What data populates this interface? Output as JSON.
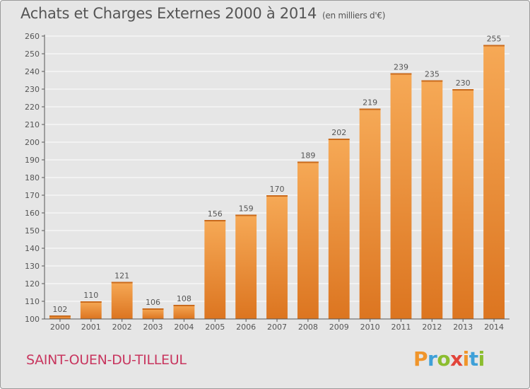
{
  "header": {
    "title": "Achats et Charges Externes 2000 à 2014",
    "subtitle": "(en milliers d'€)"
  },
  "footer": {
    "location": "SAINT-OUEN-DU-TILLEUL",
    "logo_text": "Proxiti"
  },
  "colors": {
    "background": "#e6e6e6",
    "bar_light": "#f6a956",
    "bar_dark": "#dc7520",
    "text": "#555555",
    "location": "#c8365f"
  },
  "chart_data": {
    "type": "bar",
    "categories": [
      "2000",
      "2001",
      "2002",
      "2003",
      "2004",
      "2005",
      "2006",
      "2007",
      "2008",
      "2009",
      "2010",
      "2011",
      "2012",
      "2013",
      "2014"
    ],
    "values": [
      102,
      110,
      121,
      106,
      108,
      156,
      159,
      170,
      189,
      202,
      219,
      239,
      235,
      230,
      255
    ],
    "title": "Achats et Charges Externes 2000 à 2014",
    "subtitle": "(en milliers d'€)",
    "xlabel": "",
    "ylabel": "",
    "ylim": [
      100,
      260
    ],
    "ytick_step": 10,
    "grid": true,
    "legend": "none"
  }
}
